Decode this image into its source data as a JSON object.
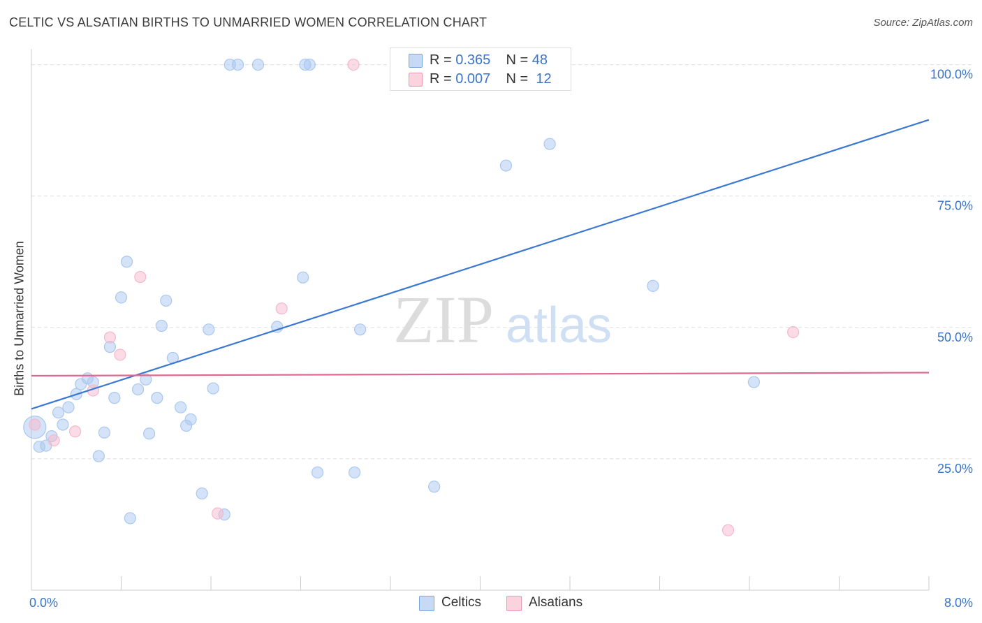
{
  "title": "CELTIC VS ALSATIAN BIRTHS TO UNMARRIED WOMEN CORRELATION CHART",
  "source": "Source: ZipAtlas.com",
  "watermark": {
    "zip": "ZIP",
    "atlas": "atlas"
  },
  "legend_top": [
    {
      "r_label": "R =",
      "r_value": "0.365",
      "n_label": "N =",
      "n_value": "48",
      "color": "#a9c8f0"
    },
    {
      "r_label": "R =",
      "r_value": "0.007",
      "n_label": "N =",
      "n_value": "12",
      "color": "#f7b8cb"
    }
  ],
  "legend_bottom": [
    {
      "label": "Celtics",
      "color": "#a9c8f0"
    },
    {
      "label": "Alsatians",
      "color": "#f7b8cb"
    }
  ],
  "chart_data": {
    "type": "scatter",
    "ylabel": "Births to Unmarried Women",
    "xlabel": "",
    "xlim": [
      0,
      8
    ],
    "ylim": [
      0,
      103
    ],
    "x_tick_labels": [
      {
        "value": 0,
        "label": "0.0%"
      },
      {
        "value": 8,
        "label": "8.0%"
      }
    ],
    "y_tick_labels": [
      {
        "value": 25,
        "label": "25.0%"
      },
      {
        "value": 50,
        "label": "50.0%"
      },
      {
        "value": 75,
        "label": "75.0%"
      },
      {
        "value": 100,
        "label": "100.0%"
      }
    ],
    "series": [
      {
        "name": "Celtics",
        "color": "#3a78d4",
        "fill": "#a9c8f0",
        "trend": {
          "x": [
            0,
            8
          ],
          "y": [
            34.5,
            89.5
          ]
        },
        "points": [
          [
            0.03,
            31.0,
            2
          ],
          [
            0.07,
            27.3,
            1
          ],
          [
            0.13,
            27.5,
            1
          ],
          [
            0.18,
            29.3,
            1
          ],
          [
            0.24,
            33.8,
            1
          ],
          [
            0.28,
            31.5,
            1
          ],
          [
            0.33,
            34.8,
            1
          ],
          [
            0.4,
            37.3,
            1
          ],
          [
            0.44,
            39.2,
            1
          ],
          [
            0.5,
            40.3,
            1
          ],
          [
            0.55,
            39.6,
            1
          ],
          [
            0.6,
            25.5,
            1
          ],
          [
            0.65,
            30.0,
            1
          ],
          [
            0.7,
            46.3,
            1
          ],
          [
            0.74,
            36.6,
            1
          ],
          [
            0.8,
            55.7,
            1
          ],
          [
            0.85,
            62.5,
            1
          ],
          [
            0.88,
            13.7,
            1
          ],
          [
            0.95,
            38.2,
            1
          ],
          [
            1.02,
            40.1,
            1
          ],
          [
            1.05,
            29.8,
            1
          ],
          [
            1.12,
            36.6,
            1
          ],
          [
            1.16,
            50.3,
            1
          ],
          [
            1.2,
            55.1,
            1
          ],
          [
            1.26,
            44.2,
            1
          ],
          [
            1.33,
            34.8,
            1
          ],
          [
            1.38,
            31.3,
            1
          ],
          [
            1.42,
            32.5,
            1
          ],
          [
            1.52,
            18.4,
            1
          ],
          [
            1.58,
            49.6,
            1
          ],
          [
            1.62,
            38.4,
            1
          ],
          [
            1.72,
            14.4,
            1
          ],
          [
            1.77,
            100.0,
            1
          ],
          [
            1.84,
            100.0,
            1
          ],
          [
            2.02,
            100.0,
            1
          ],
          [
            2.19,
            50.1,
            1
          ],
          [
            2.42,
            59.5,
            1
          ],
          [
            2.44,
            100.0,
            1
          ],
          [
            2.48,
            100.0,
            1
          ],
          [
            2.55,
            22.4,
            1
          ],
          [
            2.93,
            49.6,
            1
          ],
          [
            2.88,
            22.4,
            1
          ],
          [
            3.31,
            100.0,
            1
          ],
          [
            3.59,
            19.7,
            1
          ],
          [
            4.23,
            80.8,
            1
          ],
          [
            4.62,
            84.9,
            1
          ],
          [
            5.54,
            57.9,
            1
          ],
          [
            6.44,
            39.6,
            1
          ]
        ]
      },
      {
        "name": "Alsatians",
        "color": "#e0688f",
        "fill": "#f7b8cb",
        "trend": {
          "x": [
            0,
            8
          ],
          "y": [
            40.8,
            41.4
          ]
        },
        "points": [
          [
            0.03,
            31.5,
            1
          ],
          [
            0.2,
            28.5,
            1
          ],
          [
            0.39,
            30.2,
            1
          ],
          [
            0.55,
            38.0,
            1
          ],
          [
            0.7,
            48.1,
            1
          ],
          [
            0.79,
            44.8,
            1
          ],
          [
            0.97,
            59.6,
            1
          ],
          [
            1.66,
            14.6,
            1
          ],
          [
            2.23,
            53.6,
            1
          ],
          [
            2.87,
            100.0,
            1
          ],
          [
            6.79,
            49.1,
            1
          ],
          [
            6.21,
            11.4,
            1
          ]
        ]
      }
    ],
    "grid": true,
    "legend_position": "top-center"
  }
}
